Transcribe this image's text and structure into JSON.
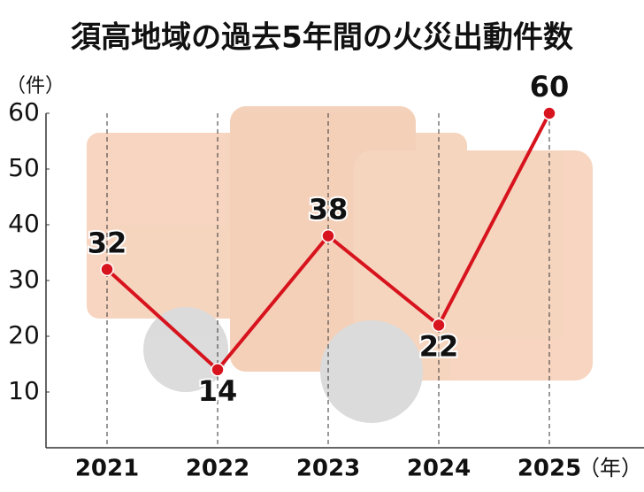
{
  "chart_data": {
    "type": "line",
    "title": "須高地域の過去5年間の火災出動件数",
    "y_label": "（件）",
    "x_label": "（年）",
    "categories": [
      "2021",
      "2022",
      "2023",
      "2024",
      "2025"
    ],
    "series": [
      {
        "name": "火災出動件数",
        "color": "#d7141e",
        "values": [
          32,
          14,
          38,
          22,
          60
        ]
      }
    ],
    "ylim": [
      0,
      60
    ],
    "yticks": [
      10,
      20,
      30,
      40,
      50,
      60
    ],
    "grid": true
  }
}
